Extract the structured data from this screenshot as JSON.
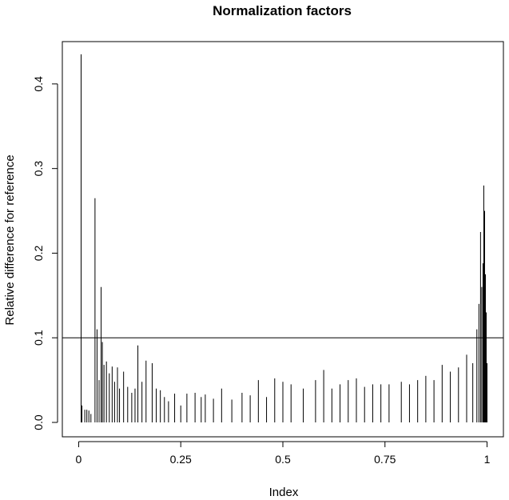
{
  "chart_data": {
    "type": "bar",
    "title": "Normalization factors",
    "xlabel": "Index",
    "ylabel": "Relative difference for reference",
    "xlim": [
      -0.04,
      1.04
    ],
    "ylim": [
      -0.017,
      0.45
    ],
    "x_ticks": [
      {
        "value": 0,
        "label": "0"
      },
      {
        "value": 0.25,
        "label": "0.25"
      },
      {
        "value": 0.5,
        "label": "0.5"
      },
      {
        "value": 0.75,
        "label": "0.75"
      },
      {
        "value": 1,
        "label": "1"
      }
    ],
    "y_ticks": [
      {
        "value": 0.0,
        "label": "0.0"
      },
      {
        "value": 0.1,
        "label": "0.1"
      },
      {
        "value": 0.2,
        "label": "0.2"
      },
      {
        "value": 0.3,
        "label": "0.3"
      },
      {
        "value": 0.4,
        "label": "0.4"
      }
    ],
    "reference_line_y": 0.1,
    "grid": false,
    "x": [
      0.006,
      0.008,
      0.015,
      0.02,
      0.025,
      0.03,
      0.04,
      0.045,
      0.05,
      0.055,
      0.058,
      0.062,
      0.068,
      0.075,
      0.082,
      0.088,
      0.095,
      0.1,
      0.11,
      0.12,
      0.13,
      0.138,
      0.145,
      0.155,
      0.165,
      0.18,
      0.19,
      0.2,
      0.21,
      0.22,
      0.235,
      0.25,
      0.265,
      0.285,
      0.3,
      0.31,
      0.33,
      0.35,
      0.375,
      0.4,
      0.42,
      0.44,
      0.46,
      0.48,
      0.5,
      0.52,
      0.55,
      0.58,
      0.6,
      0.62,
      0.64,
      0.66,
      0.68,
      0.7,
      0.72,
      0.74,
      0.76,
      0.79,
      0.81,
      0.83,
      0.85,
      0.87,
      0.89,
      0.91,
      0.93,
      0.95,
      0.965,
      0.975,
      0.98,
      0.984,
      0.987,
      0.99,
      0.992,
      0.994,
      0.996,
      0.998,
      1.0
    ],
    "values": [
      0.435,
      0.02,
      0.015,
      0.015,
      0.014,
      0.01,
      0.265,
      0.11,
      0.05,
      0.16,
      0.095,
      0.068,
      0.072,
      0.058,
      0.066,
      0.048,
      0.065,
      0.04,
      0.06,
      0.042,
      0.035,
      0.04,
      0.091,
      0.048,
      0.073,
      0.07,
      0.04,
      0.038,
      0.03,
      0.025,
      0.034,
      0.02,
      0.034,
      0.035,
      0.03,
      0.033,
      0.028,
      0.04,
      0.027,
      0.035,
      0.032,
      0.05,
      0.03,
      0.052,
      0.048,
      0.045,
      0.04,
      0.05,
      0.062,
      0.04,
      0.045,
      0.05,
      0.052,
      0.042,
      0.045,
      0.045,
      0.045,
      0.048,
      0.045,
      0.05,
      0.055,
      0.05,
      0.068,
      0.06,
      0.065,
      0.08,
      0.07,
      0.11,
      0.14,
      0.225,
      0.16,
      0.188,
      0.28,
      0.25,
      0.175,
      0.13,
      0.07
    ]
  }
}
